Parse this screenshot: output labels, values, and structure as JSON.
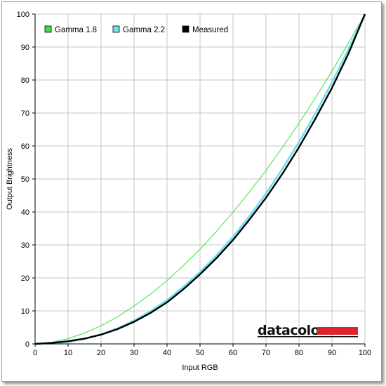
{
  "chart_data": {
    "type": "line",
    "title": "",
    "xlabel": "Input RGB",
    "ylabel": "Output Brightness",
    "xlim": [
      0,
      100
    ],
    "ylim": [
      0,
      100
    ],
    "xticks": [
      0,
      10,
      20,
      30,
      40,
      50,
      60,
      70,
      80,
      90,
      100
    ],
    "yticks": [
      0,
      10,
      20,
      30,
      40,
      50,
      60,
      70,
      80,
      90,
      100
    ],
    "grid": true,
    "legend_position": "top-left",
    "x": [
      0,
      5,
      10,
      15,
      20,
      25,
      30,
      35,
      40,
      45,
      50,
      55,
      60,
      65,
      70,
      75,
      80,
      85,
      90,
      95,
      100
    ],
    "series": [
      {
        "name": "Gamma 1.8",
        "color": "#3ee03e",
        "values": [
          0,
          0.5,
          1.6,
          3.3,
          5.5,
          8.2,
          11.5,
          15.1,
          19.2,
          23.8,
          28.7,
          34.1,
          39.9,
          46.1,
          52.6,
          59.6,
          66.9,
          74.6,
          82.7,
          91.2,
          100
        ]
      },
      {
        "name": "Gamma 2.2",
        "color": "#6fe0ee",
        "values": [
          0,
          0.1,
          0.6,
          1.5,
          2.9,
          4.7,
          7.1,
          9.9,
          13.3,
          17.3,
          21.8,
          26.8,
          32.5,
          38.7,
          45.6,
          53.1,
          61.2,
          69.9,
          79.3,
          89.3,
          100
        ]
      },
      {
        "name": "Measured",
        "color": "#000000",
        "values": [
          0,
          0.3,
          0.8,
          1.6,
          2.8,
          4.5,
          6.7,
          9.4,
          12.6,
          16.6,
          21.1,
          26.0,
          31.5,
          37.7,
          44.3,
          51.6,
          59.6,
          68.3,
          77.6,
          88.0,
          100
        ]
      }
    ]
  },
  "logo": {
    "text": "datacolor",
    "bar_color": "#e0212e"
  }
}
